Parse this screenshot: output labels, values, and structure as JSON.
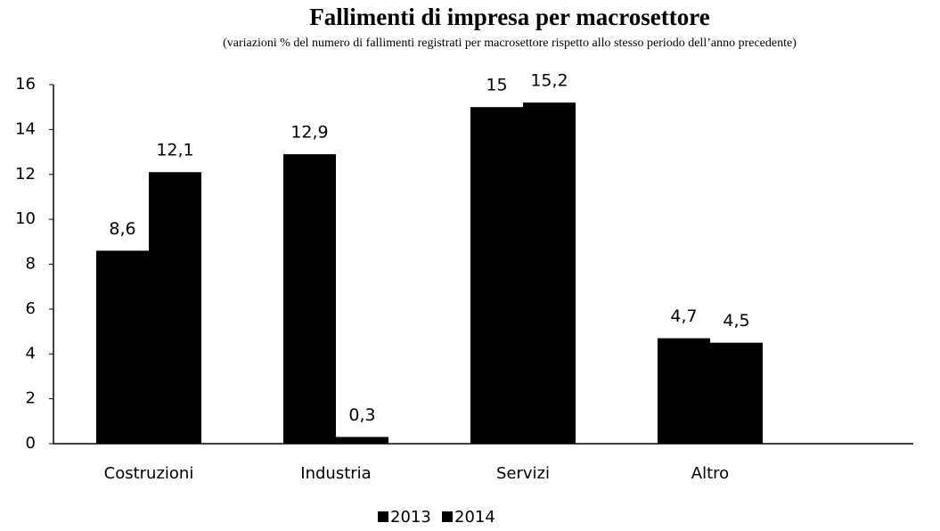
{
  "chart_data": {
    "type": "bar",
    "title": "Fallimenti di impresa per macrosettore",
    "subtitle": "(variazioni % del numero di fallimenti registrati per macrosettore rispetto allo stesso periodo dell’anno precedente)",
    "categories": [
      "Costruzioni",
      "Industria",
      "Servizi",
      "Altro"
    ],
    "series": [
      {
        "name": "2013",
        "color": "#000000",
        "values": [
          8.6,
          12.9,
          15,
          4.7
        ],
        "value_labels": [
          "8,6",
          "12,9",
          "15",
          "4,7"
        ]
      },
      {
        "name": "2014",
        "color": "#000000",
        "values": [
          12.1,
          0.3,
          15.2,
          4.5
        ],
        "value_labels": [
          "12,1",
          "0,3",
          "15,2",
          "4,5"
        ]
      }
    ],
    "ylim": [
      0,
      16
    ],
    "yticks": [
      0,
      2,
      4,
      6,
      8,
      10,
      12,
      14,
      16
    ],
    "grid": false,
    "legend": "bottom"
  }
}
